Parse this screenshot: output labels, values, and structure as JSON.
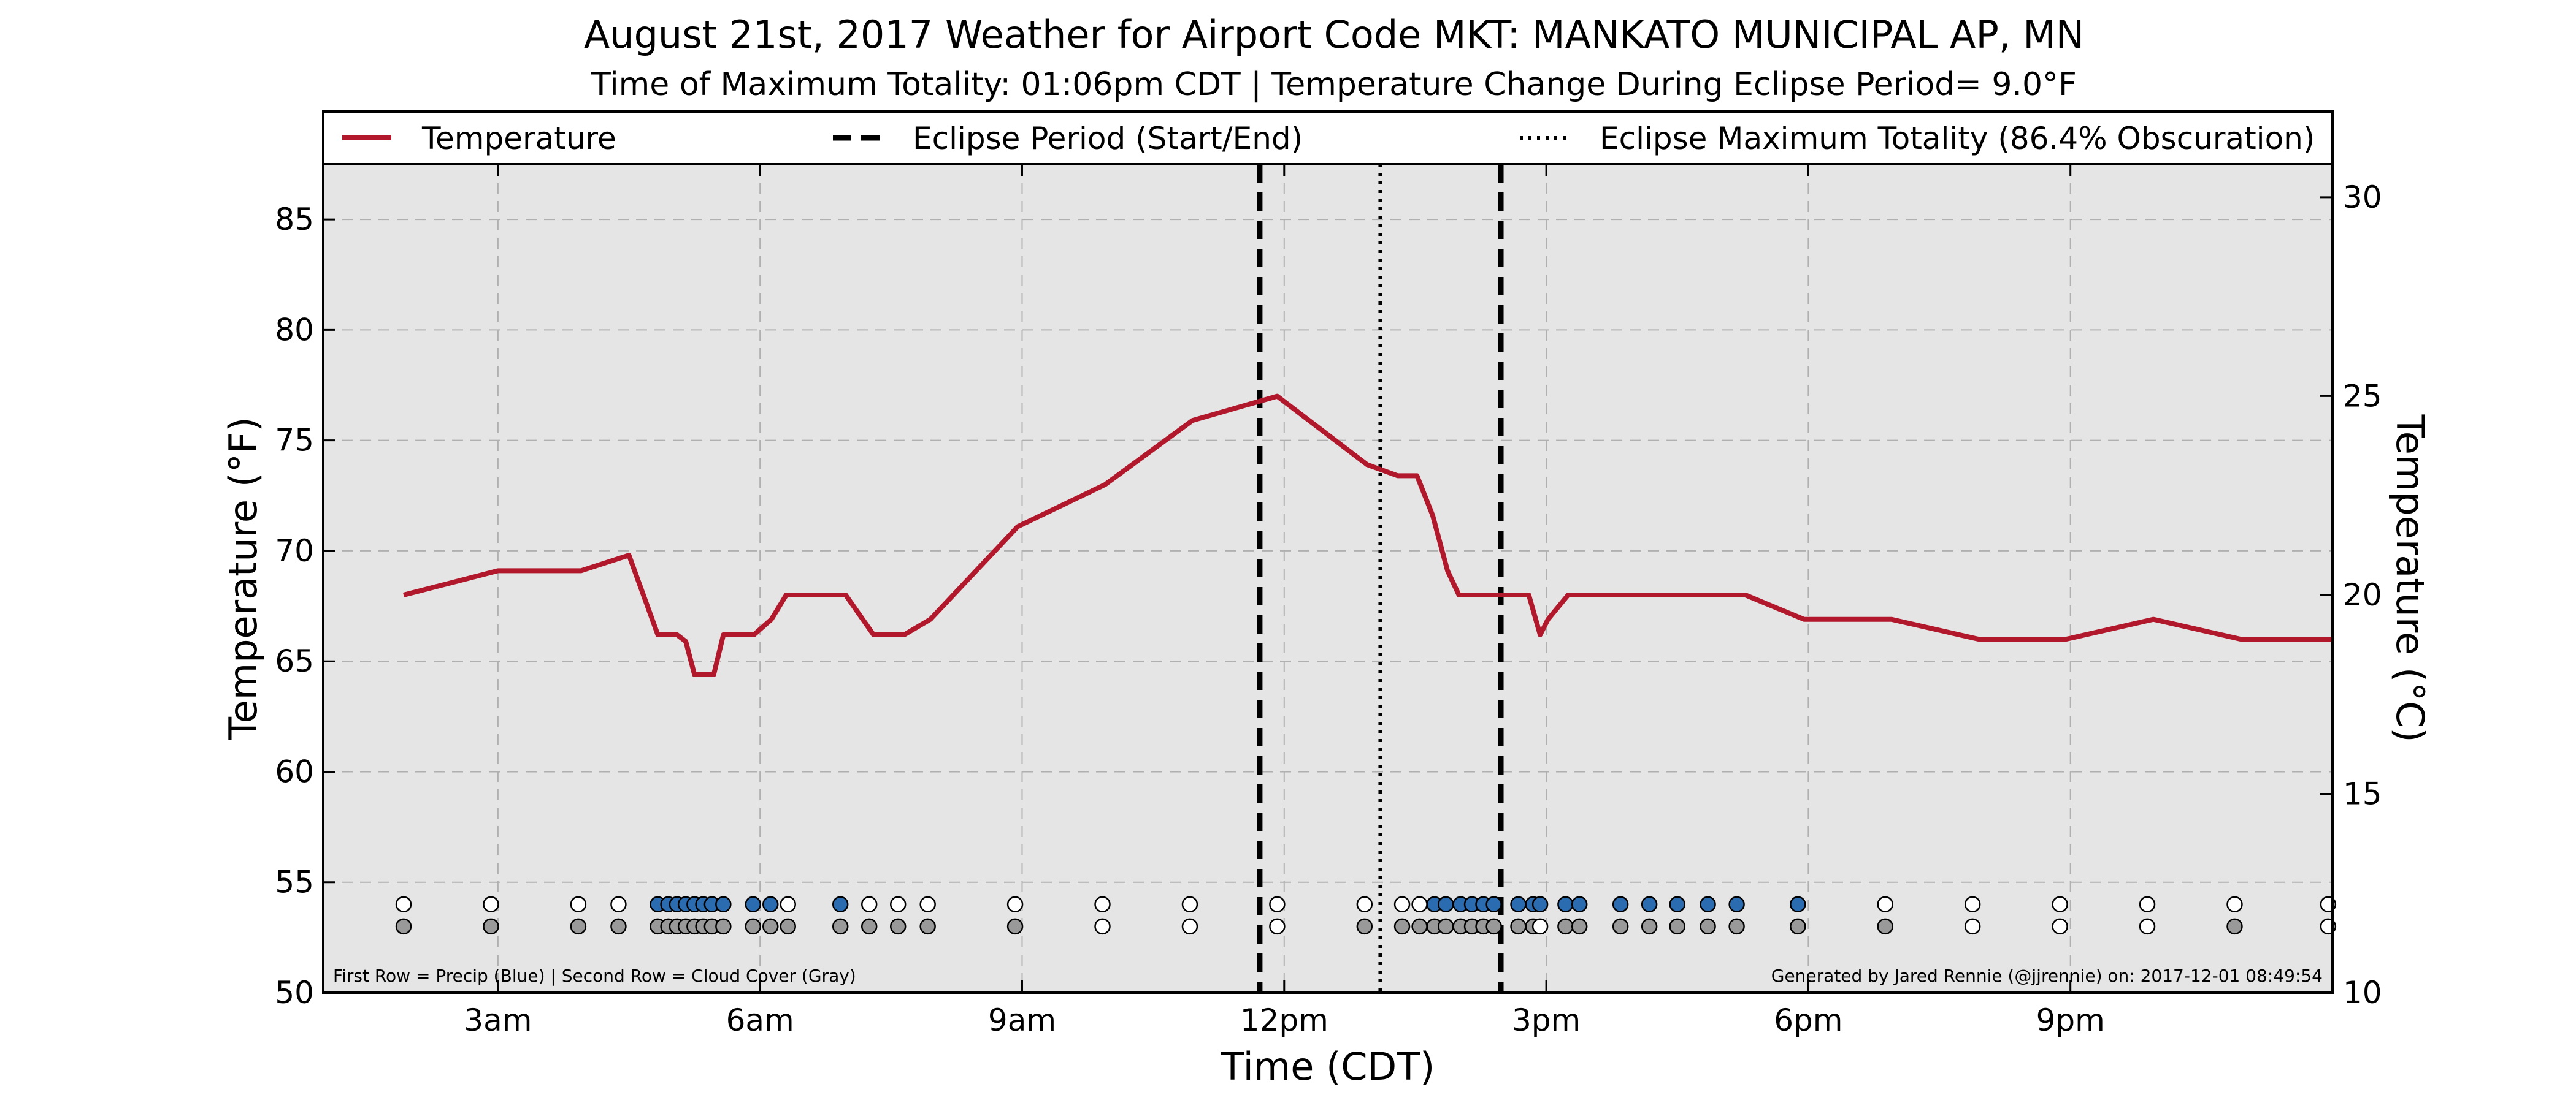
{
  "chart_data": {
    "type": "line",
    "title": "August 21st, 2017 Weather for Airport Code MKT: MANKATO MUNICIPAL AP, MN",
    "subtitle": "Time of Maximum Totality: 01:06pm CDT | Temperature Change During Eclipse Period= 9.0°F",
    "xlabel": "Time (CDT)",
    "ylabel": "Temperature (°F)",
    "y2label": "Temperature (°C)",
    "x_unit": "hours after midnight CDT",
    "xlim": [
      1.0,
      24.0
    ],
    "ylim": [
      50,
      87.5
    ],
    "y2lim": [
      10,
      30.83
    ],
    "x_ticks": [
      {
        "x": 3,
        "label": "3am"
      },
      {
        "x": 6,
        "label": "6am"
      },
      {
        "x": 9,
        "label": "9am"
      },
      {
        "x": 12,
        "label": "12pm"
      },
      {
        "x": 15,
        "label": "3pm"
      },
      {
        "x": 18,
        "label": "6pm"
      },
      {
        "x": 21,
        "label": "9pm"
      }
    ],
    "y_ticks": [
      {
        "y": 50,
        "label": "50"
      },
      {
        "y": 55,
        "label": "55"
      },
      {
        "y": 60,
        "label": "60"
      },
      {
        "y": 65,
        "label": "65"
      },
      {
        "y": 70,
        "label": "70"
      },
      {
        "y": 75,
        "label": "75"
      },
      {
        "y": 80,
        "label": "80"
      },
      {
        "y": 85,
        "label": "85"
      }
    ],
    "y2_ticks": [
      {
        "c": 10,
        "label": "10"
      },
      {
        "c": 15,
        "label": "15"
      },
      {
        "c": 20,
        "label": "20"
      },
      {
        "c": 25,
        "label": "25"
      },
      {
        "c": 30,
        "label": "30"
      }
    ],
    "grid": true,
    "legend": {
      "placement": "top",
      "items": [
        {
          "label": "Temperature",
          "style": "solid"
        },
        {
          "label": "Eclipse Period (Start/End)",
          "style": "dashed"
        },
        {
          "label": "Eclipse Maximum Totality (86.4% Obscuration)",
          "style": "dotted"
        }
      ]
    },
    "series": [
      {
        "name": "Temperature",
        "color": "#b2182b",
        "points": [
          [
            1.92,
            68.0
          ],
          [
            3.0,
            69.1
          ],
          [
            3.95,
            69.1
          ],
          [
            4.5,
            69.8
          ],
          [
            4.83,
            66.2
          ],
          [
            5.05,
            66.2
          ],
          [
            5.15,
            65.9
          ],
          [
            5.25,
            64.4
          ],
          [
            5.47,
            64.4
          ],
          [
            5.58,
            66.2
          ],
          [
            5.93,
            66.2
          ],
          [
            6.13,
            66.9
          ],
          [
            6.3,
            68.0
          ],
          [
            6.55,
            68.0
          ],
          [
            6.98,
            68.0
          ],
          [
            7.3,
            66.2
          ],
          [
            7.65,
            66.2
          ],
          [
            7.95,
            66.9
          ],
          [
            8.95,
            71.1
          ],
          [
            9.95,
            73.0
          ],
          [
            10.95,
            75.9
          ],
          [
            11.92,
            77.0
          ],
          [
            12.95,
            73.9
          ],
          [
            13.3,
            73.4
          ],
          [
            13.52,
            73.4
          ],
          [
            13.7,
            71.6
          ],
          [
            13.87,
            69.1
          ],
          [
            14.0,
            68.0
          ],
          [
            14.2,
            68.0
          ],
          [
            14.35,
            68.0
          ],
          [
            14.68,
            68.0
          ],
          [
            14.8,
            68.0
          ],
          [
            14.93,
            66.2
          ],
          [
            15.02,
            66.9
          ],
          [
            15.25,
            68.0
          ],
          [
            15.95,
            68.0
          ],
          [
            16.95,
            68.0
          ],
          [
            17.28,
            68.0
          ],
          [
            17.95,
            66.9
          ],
          [
            18.95,
            66.9
          ],
          [
            19.95,
            66.0
          ],
          [
            20.95,
            66.0
          ],
          [
            21.95,
            66.9
          ],
          [
            22.95,
            66.0
          ],
          [
            24.0,
            66.0
          ]
        ]
      }
    ],
    "eclipse_start_hour": 11.72,
    "eclipse_max_hour": 13.1,
    "eclipse_end_hour": 14.48,
    "precip_row_y": 54.0,
    "cloud_row_y": 53.0,
    "precip_dots": [
      {
        "x": 1.92,
        "blue": false
      },
      {
        "x": 2.92,
        "blue": false
      },
      {
        "x": 3.92,
        "blue": false
      },
      {
        "x": 4.38,
        "blue": false
      },
      {
        "x": 4.83,
        "blue": true
      },
      {
        "x": 4.95,
        "blue": true
      },
      {
        "x": 5.05,
        "blue": true
      },
      {
        "x": 5.15,
        "blue": true
      },
      {
        "x": 5.25,
        "blue": true
      },
      {
        "x": 5.35,
        "blue": true
      },
      {
        "x": 5.45,
        "blue": true
      },
      {
        "x": 5.58,
        "blue": true
      },
      {
        "x": 5.92,
        "blue": true
      },
      {
        "x": 6.12,
        "blue": true
      },
      {
        "x": 6.32,
        "blue": false
      },
      {
        "x": 6.92,
        "blue": true
      },
      {
        "x": 7.25,
        "blue": false
      },
      {
        "x": 7.58,
        "blue": false
      },
      {
        "x": 7.92,
        "blue": false
      },
      {
        "x": 8.92,
        "blue": false
      },
      {
        "x": 9.92,
        "blue": false
      },
      {
        "x": 10.92,
        "blue": false
      },
      {
        "x": 11.92,
        "blue": false
      },
      {
        "x": 12.92,
        "blue": false
      },
      {
        "x": 13.35,
        "blue": false
      },
      {
        "x": 13.55,
        "blue": false
      },
      {
        "x": 13.72,
        "blue": true
      },
      {
        "x": 13.85,
        "blue": true
      },
      {
        "x": 14.02,
        "blue": true
      },
      {
        "x": 14.15,
        "blue": true
      },
      {
        "x": 14.28,
        "blue": true
      },
      {
        "x": 14.4,
        "blue": true
      },
      {
        "x": 14.68,
        "blue": true
      },
      {
        "x": 14.85,
        "blue": true
      },
      {
        "x": 14.93,
        "blue": true
      },
      {
        "x": 15.22,
        "blue": true
      },
      {
        "x": 15.38,
        "blue": true
      },
      {
        "x": 15.85,
        "blue": true
      },
      {
        "x": 16.18,
        "blue": true
      },
      {
        "x": 16.5,
        "blue": true
      },
      {
        "x": 16.85,
        "blue": true
      },
      {
        "x": 17.18,
        "blue": true
      },
      {
        "x": 17.88,
        "blue": true
      },
      {
        "x": 18.88,
        "blue": false
      },
      {
        "x": 19.88,
        "blue": false
      },
      {
        "x": 20.88,
        "blue": false
      },
      {
        "x": 21.88,
        "blue": false
      },
      {
        "x": 22.88,
        "blue": false
      },
      {
        "x": 23.95,
        "blue": false
      }
    ],
    "cloud_dots": [
      {
        "x": 1.92,
        "gray": true
      },
      {
        "x": 2.92,
        "gray": true
      },
      {
        "x": 3.92,
        "gray": true
      },
      {
        "x": 4.38,
        "gray": true
      },
      {
        "x": 4.83,
        "gray": true
      },
      {
        "x": 4.95,
        "gray": true
      },
      {
        "x": 5.05,
        "gray": true
      },
      {
        "x": 5.15,
        "gray": true
      },
      {
        "x": 5.25,
        "gray": true
      },
      {
        "x": 5.35,
        "gray": true
      },
      {
        "x": 5.45,
        "gray": true
      },
      {
        "x": 5.58,
        "gray": true
      },
      {
        "x": 5.92,
        "gray": true
      },
      {
        "x": 6.12,
        "gray": true
      },
      {
        "x": 6.32,
        "gray": true
      },
      {
        "x": 6.92,
        "gray": true
      },
      {
        "x": 7.25,
        "gray": true
      },
      {
        "x": 7.58,
        "gray": true
      },
      {
        "x": 7.92,
        "gray": true
      },
      {
        "x": 8.92,
        "gray": true
      },
      {
        "x": 9.92,
        "gray": false
      },
      {
        "x": 10.92,
        "gray": false
      },
      {
        "x": 11.92,
        "gray": false
      },
      {
        "x": 12.92,
        "gray": true
      },
      {
        "x": 13.35,
        "gray": true
      },
      {
        "x": 13.55,
        "gray": true
      },
      {
        "x": 13.72,
        "gray": true
      },
      {
        "x": 13.85,
        "gray": true
      },
      {
        "x": 14.02,
        "gray": true
      },
      {
        "x": 14.15,
        "gray": true
      },
      {
        "x": 14.28,
        "gray": true
      },
      {
        "x": 14.4,
        "gray": true
      },
      {
        "x": 14.68,
        "gray": true
      },
      {
        "x": 14.85,
        "gray": true
      },
      {
        "x": 14.93,
        "gray": false
      },
      {
        "x": 15.22,
        "gray": true
      },
      {
        "x": 15.38,
        "gray": true
      },
      {
        "x": 15.85,
        "gray": true
      },
      {
        "x": 16.18,
        "gray": true
      },
      {
        "x": 16.5,
        "gray": true
      },
      {
        "x": 16.85,
        "gray": true
      },
      {
        "x": 17.18,
        "gray": true
      },
      {
        "x": 17.88,
        "gray": true
      },
      {
        "x": 18.88,
        "gray": true
      },
      {
        "x": 19.88,
        "gray": false
      },
      {
        "x": 20.88,
        "gray": false
      },
      {
        "x": 21.88,
        "gray": false
      },
      {
        "x": 22.88,
        "gray": true
      },
      {
        "x": 23.95,
        "gray": false
      }
    ],
    "note_left": "First Row = Precip (Blue) | Second Row = Cloud Cover (Gray)",
    "note_right": "Generated by Jared Rennie (@jjrennie) on: 2017-12-01 08:49:54",
    "colors": {
      "temperature": "#b2182b",
      "precip_blue": "#2b6cb0",
      "cloud_gray": "#999999",
      "plot_background": "#e5e5e5",
      "grid": "#b0b0b0"
    }
  }
}
